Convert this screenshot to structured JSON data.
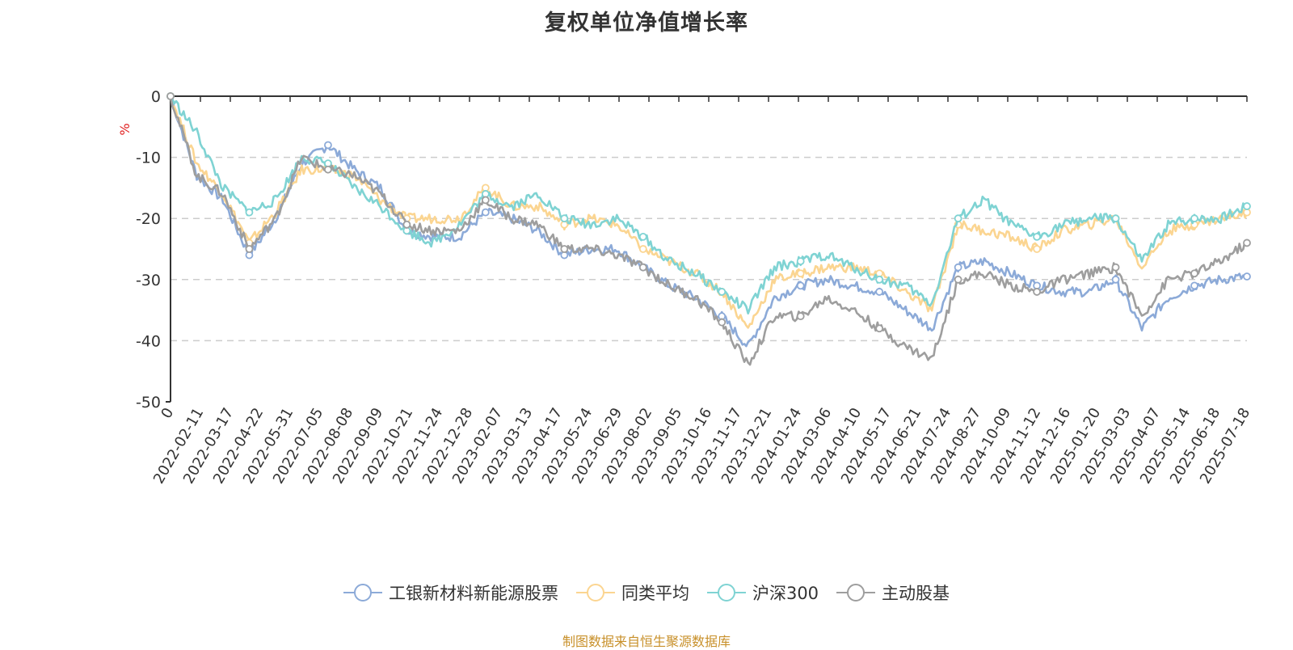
{
  "chart_data": {
    "type": "line",
    "title": "复权单位净值增长率",
    "ylabel": "%",
    "ylim": [
      -50,
      0
    ],
    "yticks": [
      0,
      -10,
      -20,
      -30,
      -40,
      -50
    ],
    "grid": "horizontal dashed",
    "legend_position": "bottom",
    "x_ticks": [
      "0",
      "2022-02-11",
      "2022-03-17",
      "2022-04-22",
      "2022-05-31",
      "2022-07-05",
      "2022-08-08",
      "2022-09-09",
      "2022-10-21",
      "2022-11-24",
      "2022-12-28",
      "2023-02-07",
      "2023-03-13",
      "2023-04-17",
      "2023-05-24",
      "2023-06-29",
      "2023-08-02",
      "2023-09-05",
      "2023-10-16",
      "2023-11-17",
      "2023-12-21",
      "2024-01-24",
      "2024-03-06",
      "2024-04-10",
      "2024-05-17",
      "2024-06-21",
      "2024-07-24",
      "2024-08-27",
      "2024-10-09",
      "2024-11-12",
      "2024-12-16",
      "2025-01-20",
      "2025-03-03",
      "2025-04-07",
      "2025-05-14",
      "2025-06-18",
      "2025-07-18"
    ],
    "series": [
      {
        "name": "工银新材料新能源股票",
        "color": "#8caad8",
        "values": [
          0,
          -13,
          -17,
          -26,
          -20,
          -11,
          -8,
          -12,
          -15,
          -22,
          -23,
          -23,
          -19,
          -20,
          -22,
          -26,
          -25,
          -25,
          -28,
          -31,
          -33,
          -36,
          -41,
          -33,
          -31,
          -30,
          -31,
          -32,
          -35,
          -38,
          -28,
          -27,
          -29,
          -31,
          -32,
          -32,
          -30,
          -38,
          -33,
          -31,
          -30,
          -29.5
        ]
      },
      {
        "name": "同类平均",
        "color": "#fbd591",
        "values": [
          0,
          -11,
          -16,
          -24,
          -19,
          -12,
          -12,
          -13,
          -17,
          -20,
          -20,
          -20,
          -15,
          -18,
          -18,
          -21,
          -20,
          -21,
          -25,
          -27,
          -29,
          -32,
          -38,
          -30,
          -29,
          -28,
          -28,
          -29,
          -32,
          -35,
          -21,
          -22,
          -23,
          -25,
          -22,
          -21,
          -20,
          -28,
          -22,
          -21,
          -20,
          -19
        ]
      },
      {
        "name": "沪深300",
        "color": "#7fd3d3",
        "values": [
          0,
          -6,
          -15,
          -19,
          -17,
          -10,
          -11,
          -15,
          -18,
          -22,
          -24,
          -21,
          -16,
          -18,
          -16,
          -20,
          -21,
          -20,
          -23,
          -27,
          -29,
          -32,
          -35,
          -28,
          -27,
          -26,
          -28,
          -30,
          -31,
          -34,
          -20,
          -17,
          -21,
          -23,
          -21,
          -20,
          -20,
          -27,
          -21,
          -20,
          -20,
          -18
        ]
      },
      {
        "name": "主动股基",
        "color": "#9e9e9e",
        "values": [
          0,
          -13,
          -16,
          -25,
          -20,
          -10,
          -12,
          -13,
          -16,
          -21,
          -22,
          -22,
          -17,
          -20,
          -21,
          -25,
          -25,
          -26,
          -28,
          -31,
          -33,
          -37,
          -44,
          -36,
          -36,
          -33,
          -35,
          -38,
          -41,
          -43,
          -30,
          -29,
          -31,
          -32,
          -30,
          -29,
          -28,
          -36,
          -30,
          -29,
          -27,
          -24
        ]
      }
    ]
  },
  "legend": [
    {
      "label": "工银新材料新能源股票",
      "color": "#8caad8"
    },
    {
      "label": "同类平均",
      "color": "#fbd591"
    },
    {
      "label": "沪深300",
      "color": "#7fd3d3"
    },
    {
      "label": "主动股基",
      "color": "#9e9e9e"
    }
  ],
  "source": "制图数据来自恒生聚源数据库"
}
